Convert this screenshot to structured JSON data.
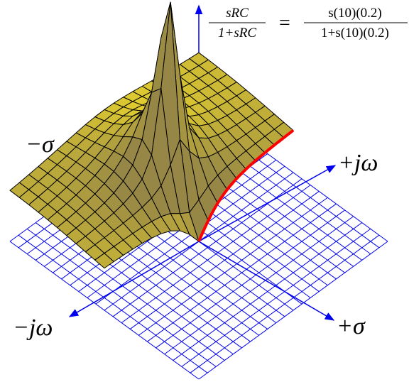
{
  "labels": {
    "neg_sigma": "−σ",
    "pos_jw": "+jω",
    "neg_jw": "−jω",
    "pos_sigma": "+σ"
  },
  "formula": {
    "left_num": "sRC",
    "left_den": "1+sRC",
    "equals": "=",
    "right_num": "s(10)(0.2)",
    "right_den": "1+s(10)(0.2)"
  }
}
